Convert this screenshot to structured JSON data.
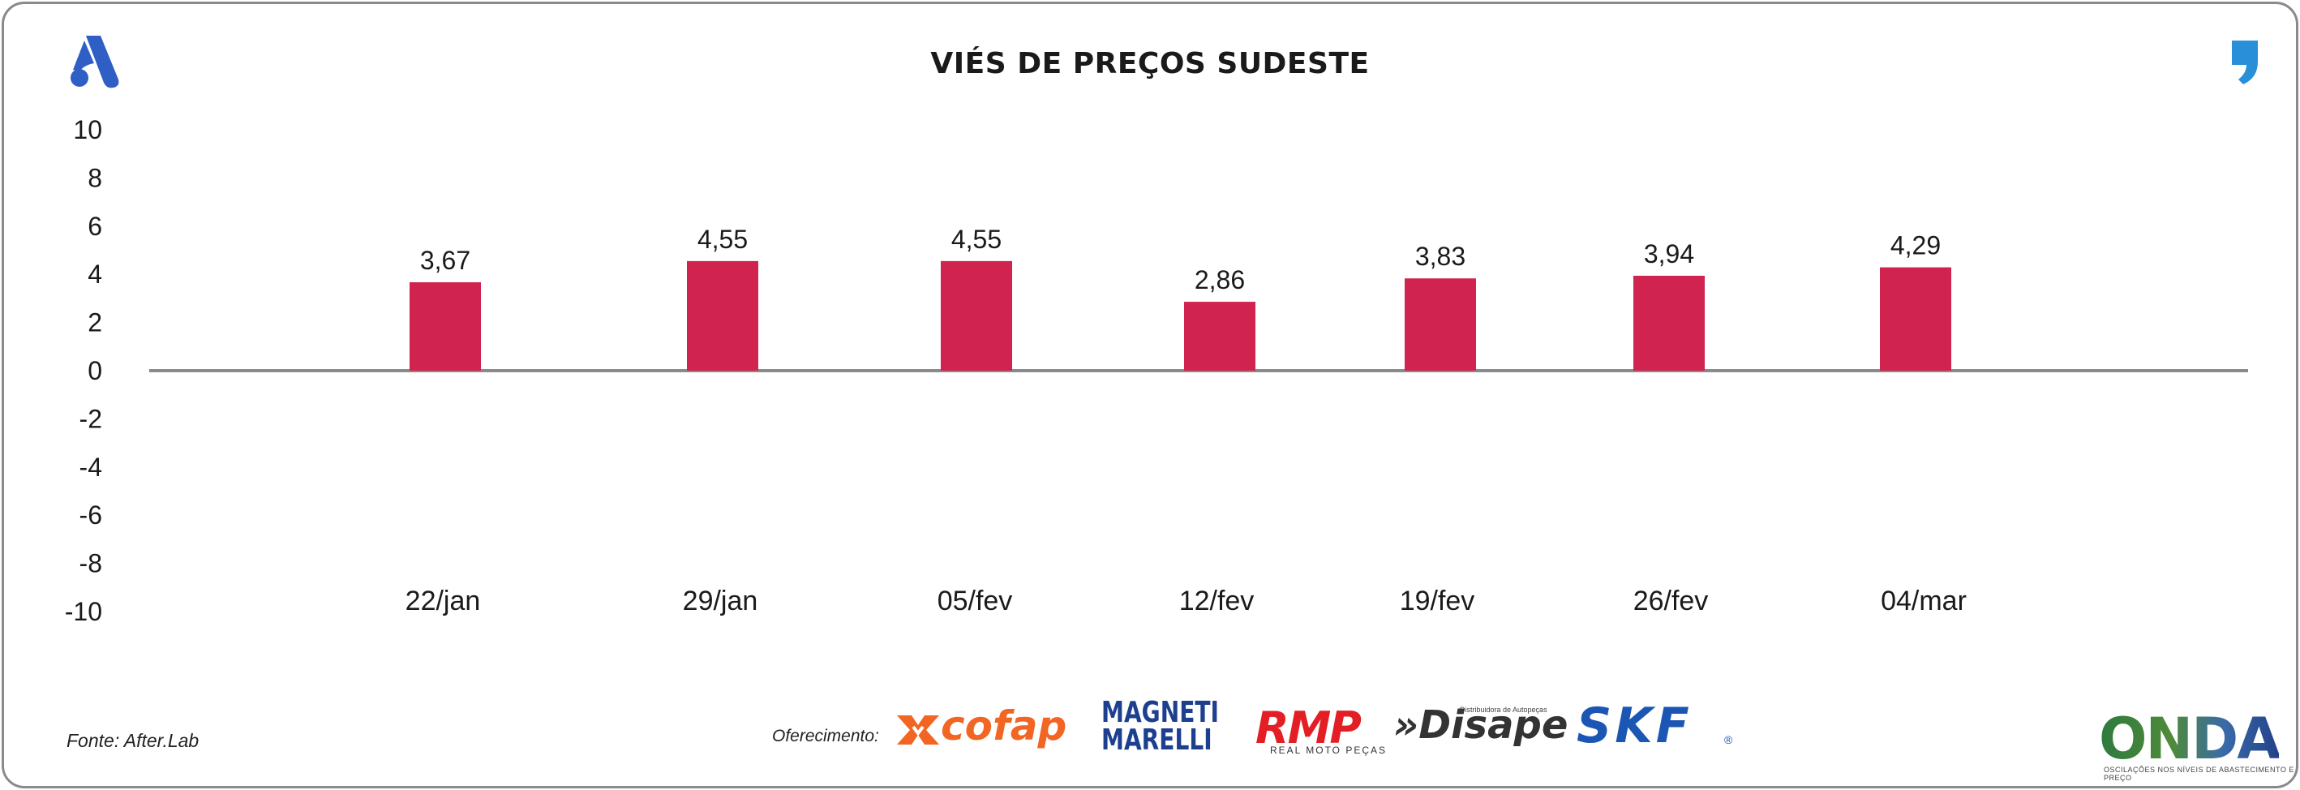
{
  "header": {
    "title": "VIÉS DE PREÇOS SUDESTE",
    "brand_icon": "after-lab-logo-icon",
    "quote_icon": "quote-icon"
  },
  "colors": {
    "bar": "#d0234f",
    "axis": "#8a8a8a",
    "brand_blue": "#2f5fc4",
    "quote_blue": "#2a8fd9"
  },
  "chart_data": {
    "type": "bar",
    "title": "VIÉS DE PREÇOS SUDESTE",
    "categories": [
      "22/jan",
      "29/jan",
      "05/fev",
      "12/fev",
      "19/fev",
      "26/fev",
      "04/mar"
    ],
    "values": [
      3.67,
      4.55,
      4.55,
      2.86,
      3.83,
      3.94,
      4.29
    ],
    "value_labels": [
      "3,67",
      "4,55",
      "4,55",
      "2,86",
      "3,83",
      "3,94",
      "4,29"
    ],
    "yticks": [
      "10",
      "8",
      "6",
      "4",
      "2",
      "0",
      "-2",
      "-4",
      "-6",
      "-8",
      "-10"
    ],
    "ylim": [
      -10,
      10
    ],
    "xlabel": "",
    "ylabel": "",
    "grid": false,
    "legend": "none"
  },
  "footer": {
    "source": "Fonte: After.Lab",
    "sponsor_label": "Oferecimento:",
    "sponsors": {
      "cofap": "cofap",
      "magneti_1": "MAGNETI",
      "magneti_2": "MARELLI",
      "rmp": "RMP",
      "rmp_sub": "REAL MOTO PEÇAS",
      "disape": "»Disape",
      "disape_sub": "Distribuidora de Autopeças",
      "skf": "SKF",
      "skf_mark": "®"
    },
    "onda": "ONDA",
    "onda_sub": "OSCILAÇÕES NOS NÍVEIS DE ABASTECIMENTO E PREÇO"
  }
}
